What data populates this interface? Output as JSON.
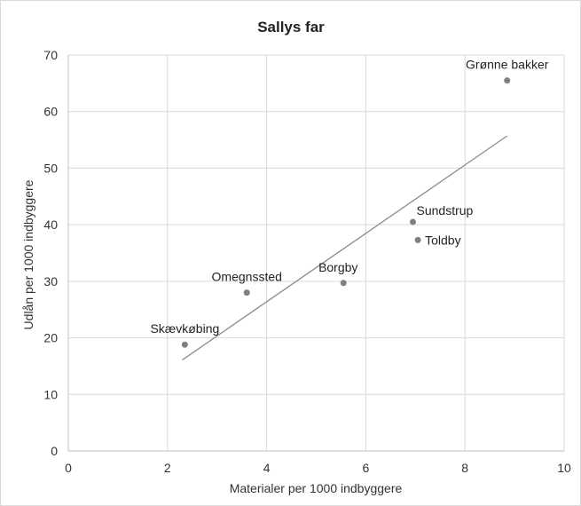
{
  "chart_data": {
    "type": "scatter",
    "title": "Sallys far",
    "xlabel": "Materialer per 1000 indbyggere",
    "ylabel": "Udlån per 1000 indbyggere",
    "xlim": [
      0,
      10
    ],
    "ylim": [
      0,
      70
    ],
    "xticks": [
      0,
      2,
      4,
      6,
      8,
      10
    ],
    "yticks": [
      0,
      10,
      20,
      30,
      40,
      50,
      60,
      70
    ],
    "grid": true,
    "points": [
      {
        "label": "Skævkøbing",
        "x": 2.35,
        "y": 18.8
      },
      {
        "label": "Omegnssted",
        "x": 3.6,
        "y": 28.0
      },
      {
        "label": "Borgby",
        "x": 5.55,
        "y": 29.7
      },
      {
        "label": "Sundstrup",
        "x": 6.95,
        "y": 40.5
      },
      {
        "label": "Toldby",
        "x": 7.05,
        "y": 37.3
      },
      {
        "label": "Grønne bakker",
        "x": 8.85,
        "y": 65.5
      }
    ],
    "trendline": {
      "x": [
        2.3,
        8.85
      ],
      "y": [
        16.1,
        55.7
      ]
    },
    "colors": {
      "point": "#7f7f7f",
      "trendline": "#8c8c8c",
      "grid": "#d9d9d9",
      "axis": "#bfbfbf"
    }
  }
}
